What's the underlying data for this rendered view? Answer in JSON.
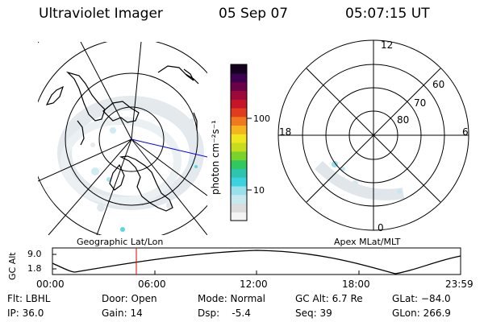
{
  "header": {
    "title": "Ultraviolet Imager",
    "date": "05 Sep 07",
    "time": "05:07:15 UT"
  },
  "colorbar": {
    "unit_label": "photon cm⁻²s⁻¹",
    "ticks": [
      "100",
      "10"
    ],
    "colors": [
      "#f4f4f4",
      "#dcdcdc",
      "#c8e8f0",
      "#9ae0ea",
      "#3cd2e0",
      "#2fc4b0",
      "#32c860",
      "#7ad22a",
      "#c8dc1e",
      "#f0e61e",
      "#f6b41e",
      "#f0781e",
      "#e03c1e",
      "#c81428",
      "#9c0a3c",
      "#6a0046",
      "#3c0050",
      "#14001e"
    ]
  },
  "geo_map": {
    "label": "Geographic Lat/Lon"
  },
  "mlt_map": {
    "label": "Apex MLat/MLT",
    "hour_labels": {
      "top": "12",
      "left": "18",
      "right": "6",
      "bottom": "0"
    },
    "lat_labels": [
      "60",
      "70",
      "80"
    ]
  },
  "altitude_plot": {
    "ylabel": "GC Alt",
    "yticks": [
      "9.0",
      "1.8"
    ],
    "xticks": [
      "00:00",
      "06:00",
      "12:00",
      "18:00",
      "23:59"
    ],
    "marker_time": "05:07"
  },
  "info": {
    "flt": "Flt: LBHL",
    "ip": "IP: 36.0",
    "door": "Door: Open",
    "gain": "Gain: 14",
    "mode": "Mode: Normal",
    "dsp": "Dsp:    -5.4",
    "gc_alt": "GC Alt: 6.7 Re",
    "seq": "Seq: 39",
    "glat": "GLat: −84.0",
    "glon": "GLon: 266.9"
  }
}
